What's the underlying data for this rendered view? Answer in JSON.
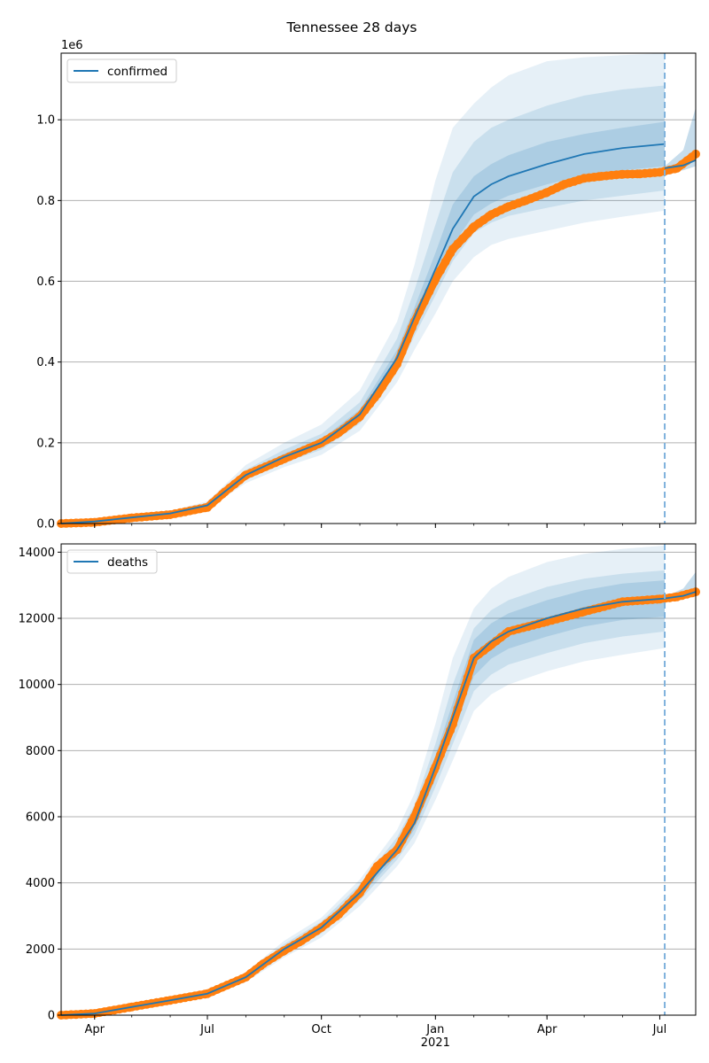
{
  "chart_data": {
    "title": "Tennessee 28 days",
    "type": "line",
    "x_axis": {
      "type": "date",
      "range": [
        "2020-03-05",
        "2021-07-30"
      ],
      "tick_labels": [
        {
          "date": "2020-04-01",
          "label": "Apr"
        },
        {
          "date": "2020-07-01",
          "label": "Jul"
        },
        {
          "date": "2020-10-01",
          "label": "Oct"
        },
        {
          "date": "2021-01-01",
          "label": "Jan"
        },
        {
          "date": "2021-04-01",
          "label": "Apr"
        },
        {
          "date": "2021-07-01",
          "label": "Jul"
        }
      ],
      "year_label": {
        "date": "2021-01-01",
        "label": "2021"
      },
      "minor_ticks": "monthly"
    },
    "forecast_date": "2021-07-05",
    "forecast_marker_color": "#7fb2dc",
    "colors": {
      "model": "#1f77b4",
      "observed": "#ff7f0e",
      "band": "#1f77b4",
      "grid": "#b0b0b0"
    },
    "panels": [
      {
        "id": "confirmed",
        "legend": "confirmed",
        "legend_position": "upper-left",
        "y_scale_label": "1e6",
        "ylim": [
          0,
          1165000
        ],
        "yticks": [
          {
            "value": 0,
            "label": "0.0"
          },
          {
            "value": 200000,
            "label": "0.2"
          },
          {
            "value": 400000,
            "label": "0.4"
          },
          {
            "value": 600000,
            "label": "0.6"
          },
          {
            "value": 800000,
            "label": "0.8"
          },
          {
            "value": 1000000,
            "label": "1.0"
          }
        ],
        "grid": "y",
        "model": {
          "dates": [
            "2020-03-05",
            "2020-04-01",
            "2020-05-01",
            "2020-06-01",
            "2020-07-01",
            "2020-08-01",
            "2020-09-01",
            "2020-10-01",
            "2020-11-01",
            "2020-12-01",
            "2020-12-15",
            "2021-01-01",
            "2021-01-15",
            "2021-02-01",
            "2021-02-15",
            "2021-03-01",
            "2021-04-01",
            "2021-05-01",
            "2021-06-01",
            "2021-07-05"
          ],
          "median": [
            0,
            5000,
            15000,
            25000,
            45000,
            120000,
            165000,
            200000,
            270000,
            410000,
            510000,
            630000,
            730000,
            810000,
            840000,
            860000,
            890000,
            915000,
            930000,
            940000
          ],
          "bands": [
            {
              "opacity": 0.11,
              "lower": [
                0,
                4000,
                12000,
                20000,
                36000,
                100000,
                140000,
                170000,
                230000,
                350000,
                430000,
                520000,
                600000,
                660000,
                690000,
                705000,
                725000,
                745000,
                760000,
                775000
              ],
              "upper": [
                0,
                6000,
                18000,
                31000,
                55000,
                145000,
                200000,
                245000,
                330000,
                500000,
                640000,
                850000,
                980000,
                1040000,
                1080000,
                1110000,
                1145000,
                1155000,
                1160000,
                1165000
              ]
            },
            {
              "opacity": 0.14,
              "lower": [
                0,
                4500,
                13000,
                22000,
                39000,
                108000,
                150000,
                183000,
                248000,
                375000,
                465000,
                565000,
                650000,
                720000,
                745000,
                762000,
                782000,
                800000,
                812000,
                825000
              ],
              "upper": [
                0,
                5600,
                17000,
                28500,
                51000,
                133000,
                183000,
                222000,
                300000,
                458000,
                578000,
                740000,
                870000,
                945000,
                980000,
                1000000,
                1035000,
                1060000,
                1075000,
                1085000
              ]
            },
            {
              "opacity": 0.17,
              "lower": [
                0,
                4800,
                14000,
                23500,
                42000,
                114000,
                157000,
                191000,
                258000,
                392000,
                487000,
                595000,
                690000,
                765000,
                793000,
                812000,
                840000,
                862000,
                875000,
                885000
              ],
              "upper": [
                0,
                5300,
                16000,
                26500,
                48000,
                126000,
                173000,
                209000,
                282000,
                430000,
                535000,
                670000,
                790000,
                860000,
                890000,
                912000,
                945000,
                965000,
                980000,
                995000
              ]
            }
          ]
        },
        "observed": {
          "dates": [
            "2020-03-05",
            "2020-04-01",
            "2020-05-01",
            "2020-06-01",
            "2020-07-01",
            "2020-07-15",
            "2020-08-01",
            "2020-09-01",
            "2020-10-01",
            "2020-10-15",
            "2020-11-01",
            "2020-11-15",
            "2020-12-01",
            "2020-12-15",
            "2021-01-01",
            "2021-01-15",
            "2021-02-01",
            "2021-02-15",
            "2021-03-01",
            "2021-03-15",
            "2021-04-01",
            "2021-04-15",
            "2021-05-01",
            "2021-05-15",
            "2021-06-01",
            "2021-06-15",
            "2021-07-01",
            "2021-07-15",
            "2021-07-30"
          ],
          "values": [
            0,
            3000,
            14000,
            22000,
            40000,
            78000,
            120000,
            160000,
            200000,
            225000,
            265000,
            320000,
            395000,
            500000,
            605000,
            680000,
            735000,
            765000,
            785000,
            800000,
            820000,
            840000,
            855000,
            860000,
            865000,
            866000,
            870000,
            880000,
            915000
          ]
        },
        "post_forecast": {
          "median": {
            "dates": [
              "2021-07-05",
              "2021-07-20",
              "2021-07-30"
            ],
            "values": [
              880000,
              887000,
              900000
            ]
          },
          "band": {
            "dates": [
              "2021-07-05",
              "2021-07-20",
              "2021-07-30"
            ],
            "lower": [
              870000,
              875000,
              885000
            ],
            "upper": [
              885000,
              925000,
              1030000
            ]
          }
        }
      },
      {
        "id": "deaths",
        "legend": "deaths",
        "legend_position": "upper-left",
        "y_scale_label": "",
        "ylim": [
          0,
          14250
        ],
        "yticks": [
          {
            "value": 0,
            "label": "0"
          },
          {
            "value": 2000,
            "label": "2000"
          },
          {
            "value": 4000,
            "label": "4000"
          },
          {
            "value": 6000,
            "label": "6000"
          },
          {
            "value": 8000,
            "label": "8000"
          },
          {
            "value": 10000,
            "label": "10000"
          },
          {
            "value": 12000,
            "label": "12000"
          },
          {
            "value": 14000,
            "label": "14000"
          }
        ],
        "grid": "y",
        "model": {
          "dates": [
            "2020-03-05",
            "2020-04-01",
            "2020-05-01",
            "2020-06-01",
            "2020-07-01",
            "2020-08-01",
            "2020-09-01",
            "2020-10-01",
            "2020-11-01",
            "2020-12-01",
            "2020-12-15",
            "2021-01-01",
            "2021-01-15",
            "2021-02-01",
            "2021-02-15",
            "2021-03-01",
            "2021-04-01",
            "2021-05-01",
            "2021-06-01",
            "2021-07-05"
          ],
          "median": [
            0,
            50,
            250,
            450,
            650,
            1150,
            2000,
            2650,
            3700,
            5000,
            5800,
            7500,
            9000,
            10800,
            11300,
            11600,
            12000,
            12300,
            12500,
            12600
          ],
          "bands": [
            {
              "opacity": 0.11,
              "lower": [
                0,
                40,
                210,
                380,
                560,
                1000,
                1750,
                2350,
                3300,
                4500,
                5200,
                6500,
                7700,
                9200,
                9700,
                10000,
                10400,
                10700,
                10900,
                11100
              ],
              "upper": [
                0,
                60,
                290,
                520,
                740,
                1300,
                2250,
                2950,
                4100,
                5600,
                6700,
                8800,
                10800,
                12300,
                12900,
                13250,
                13700,
                13950,
                14100,
                14200
              ]
            },
            {
              "opacity": 0.14,
              "lower": [
                0,
                44,
                225,
                405,
                590,
                1050,
                1850,
                2470,
                3470,
                4700,
                5450,
                6900,
                8200,
                9800,
                10300,
                10600,
                10950,
                11250,
                11450,
                11600
              ],
              "upper": [
                0,
                56,
                275,
                495,
                710,
                1250,
                2150,
                2830,
                3950,
                5380,
                6350,
                8200,
                10000,
                11700,
                12250,
                12550,
                12950,
                13200,
                13350,
                13450
              ]
            },
            {
              "opacity": 0.17,
              "lower": [
                0,
                47,
                238,
                428,
                615,
                1100,
                1920,
                2560,
                3580,
                4830,
                5620,
                7150,
                8550,
                10250,
                10780,
                11080,
                11450,
                11750,
                11950,
                12050
              ],
              "upper": [
                0,
                53,
                262,
                472,
                685,
                1200,
                2080,
                2740,
                3820,
                5170,
                6020,
                7850,
                9450,
                11350,
                11850,
                12150,
                12550,
                12850,
                13050,
                13150
              ]
            }
          ]
        },
        "observed": {
          "dates": [
            "2020-03-05",
            "2020-04-01",
            "2020-05-01",
            "2020-06-01",
            "2020-07-01",
            "2020-08-01",
            "2020-08-15",
            "2020-09-01",
            "2020-09-15",
            "2020-10-01",
            "2020-10-15",
            "2020-11-01",
            "2020-11-15",
            "2020-12-01",
            "2020-12-15",
            "2021-01-01",
            "2021-01-15",
            "2021-02-01",
            "2021-02-15",
            "2021-03-01",
            "2021-04-01",
            "2021-05-01",
            "2021-06-01",
            "2021-07-01",
            "2021-07-15",
            "2021-07-30"
          ],
          "values": [
            0,
            50,
            250,
            450,
            650,
            1150,
            1550,
            1950,
            2250,
            2650,
            3050,
            3700,
            4500,
            5000,
            6000,
            7500,
            8800,
            10800,
            11200,
            11600,
            11900,
            12200,
            12500,
            12580,
            12650,
            12800
          ]
        },
        "post_forecast": {
          "median": {
            "dates": [
              "2021-07-05",
              "2021-07-20",
              "2021-07-30"
            ],
            "values": [
              12600,
              12680,
              12800
            ]
          },
          "band": {
            "dates": [
              "2021-07-05",
              "2021-07-20",
              "2021-07-30"
            ],
            "lower": [
              12550,
              12600,
              12650
            ],
            "upper": [
              12650,
              12900,
              13400
            ]
          }
        }
      }
    ]
  }
}
